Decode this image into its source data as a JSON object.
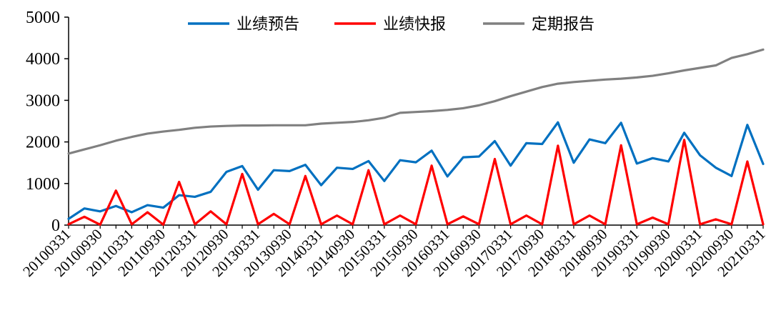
{
  "chart_data": {
    "type": "line",
    "ylim": [
      0,
      5000
    ],
    "yticks": [
      0,
      1000,
      2000,
      3000,
      4000,
      5000
    ],
    "grid": false,
    "legend_position": "top-center",
    "x": [
      "20100331",
      "20100630",
      "20100930",
      "20101231",
      "20110331",
      "20110630",
      "20110930",
      "20111231",
      "20120331",
      "20120630",
      "20120930",
      "20121231",
      "20130331",
      "20130630",
      "20130930",
      "20131231",
      "20140331",
      "20140630",
      "20140930",
      "20141231",
      "20150331",
      "20150630",
      "20150930",
      "20151231",
      "20160331",
      "20160630",
      "20160930",
      "20161231",
      "20170331",
      "20170630",
      "20170930",
      "20171231",
      "20180331",
      "20180630",
      "20180930",
      "20181231",
      "20190331",
      "20190630",
      "20190930",
      "20191231",
      "20200331",
      "20200630",
      "20200930",
      "20201231",
      "20210331"
    ],
    "x_tick_labels": [
      "20100331",
      "20100930",
      "20110331",
      "20110930",
      "20120331",
      "20120930",
      "20130331",
      "20130930",
      "20140331",
      "20140930",
      "20150331",
      "20150930",
      "20160331",
      "20160930",
      "20170331",
      "20170930",
      "20180331",
      "20180930",
      "20190331",
      "20190930",
      "20200331",
      "20200930",
      "20210331"
    ],
    "series": [
      {
        "name": "业绩预告",
        "color": "#0070C0",
        "values": [
          150,
          400,
          330,
          460,
          310,
          480,
          420,
          720,
          680,
          800,
          1280,
          1420,
          850,
          1320,
          1300,
          1450,
          960,
          1380,
          1350,
          1540,
          1060,
          1560,
          1510,
          1790,
          1170,
          1630,
          1650,
          2020,
          1430,
          1970,
          1950,
          2470,
          1500,
          2060,
          1970,
          2460,
          1480,
          1610,
          1530,
          2220,
          1680,
          1380,
          1180,
          2410,
          1470
        ]
      },
      {
        "name": "业绩快报",
        "color": "#FF0000",
        "values": [
          20,
          200,
          10,
          830,
          20,
          310,
          10,
          1040,
          20,
          330,
          20,
          1230,
          20,
          270,
          20,
          1180,
          20,
          230,
          20,
          1320,
          20,
          230,
          20,
          1430,
          20,
          210,
          20,
          1590,
          20,
          230,
          20,
          1910,
          20,
          230,
          20,
          1920,
          20,
          180,
          20,
          2050,
          20,
          140,
          20,
          1530,
          20
        ]
      },
      {
        "name": "定期报告",
        "color": "#808080",
        "values": [
          1720,
          1820,
          1920,
          2030,
          2120,
          2200,
          2250,
          2290,
          2340,
          2370,
          2385,
          2395,
          2395,
          2400,
          2400,
          2400,
          2440,
          2460,
          2480,
          2520,
          2580,
          2700,
          2720,
          2740,
          2770,
          2810,
          2880,
          2980,
          3100,
          3210,
          3320,
          3400,
          3440,
          3470,
          3500,
          3520,
          3550,
          3590,
          3650,
          3720,
          3780,
          3840,
          4020,
          4110,
          4220
        ]
      }
    ]
  }
}
